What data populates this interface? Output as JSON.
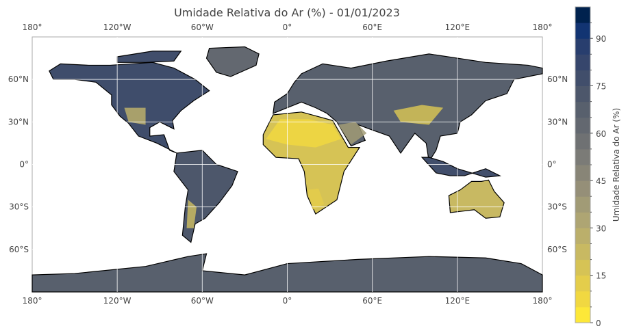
{
  "chart_data": {
    "type": "heatmap",
    "title": "Umidade Relativa do Ar (%) - 01/01/2023",
    "projection": "PlateCarree",
    "xlim": [
      -180,
      180
    ],
    "ylim": [
      -90,
      90
    ],
    "grid": true,
    "x_tick_labels": [
      "180°",
      "120°W",
      "60°W",
      "0°",
      "60°E",
      "120°E",
      "180°"
    ],
    "x_ticks": [
      -180,
      -120,
      -60,
      0,
      60,
      120,
      180
    ],
    "y_tick_labels": [
      "60°N",
      "30°N",
      "0°",
      "30°S",
      "60°S"
    ],
    "y_ticks": [
      60,
      30,
      0,
      -30,
      -60
    ],
    "colorbar": {
      "label": "Umidade Relativa do Ar (%)",
      "position": "right",
      "range": [
        0,
        100
      ],
      "step": 5,
      "tick_values": [
        0,
        15,
        30,
        45,
        60,
        75,
        90
      ],
      "tick_labels": [
        "0",
        "15",
        "30",
        "45",
        "60",
        "75",
        "90"
      ],
      "colors": [
        "#fde838",
        "#f1d841",
        "#e4cd4b",
        "#d6c355",
        "#c8b962",
        "#bbaf6b",
        "#aea573",
        "#a19b76",
        "#958f78",
        "#888577",
        "#7b7b77",
        "#6f7173",
        "#636870",
        "#58606d",
        "#4d576b",
        "#414e6b",
        "#36466c",
        "#283e6e",
        "#123472",
        "#00224e"
      ]
    },
    "colors": {
      "dry": "#fde838",
      "humid": "#00224e",
      "coastline": "#000000"
    }
  }
}
